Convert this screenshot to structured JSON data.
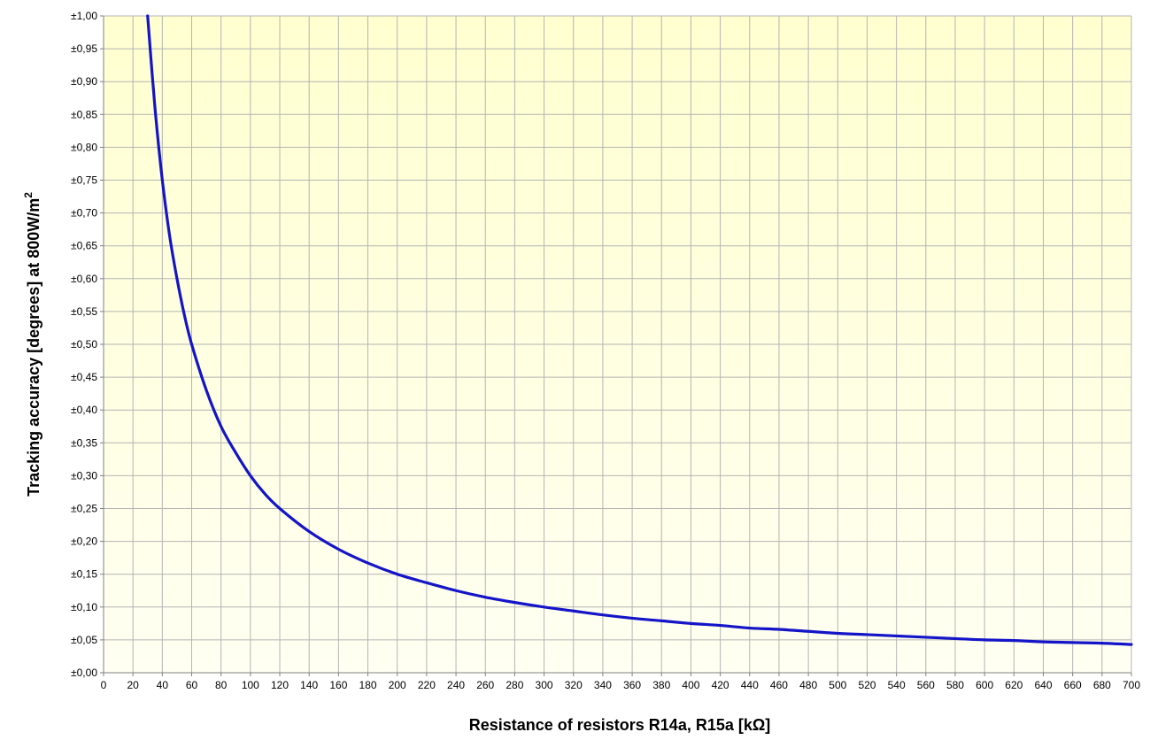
{
  "colors": {
    "plot_bg_top": "#ffffd0",
    "plot_bg_bottom": "#fffff2",
    "series": "#1414c8",
    "grid": "#b4b4b4"
  },
  "chart_data": {
    "type": "line",
    "title": "",
    "xlabel": "Resistance of resistors R14a, R15a [kΩ]",
    "ylabel_main": "Tracking accuracy [degrees] at 800W/m",
    "ylabel_sup": "2",
    "xlim": [
      0,
      700
    ],
    "ylim": [
      0,
      1
    ],
    "x_tick_step": 20,
    "y_tick_step": 0.05,
    "x_tick_labels": [
      "0",
      "20",
      "40",
      "60",
      "80",
      "100",
      "120",
      "140",
      "160",
      "180",
      "200",
      "220",
      "240",
      "260",
      "280",
      "300",
      "320",
      "340",
      "360",
      "380",
      "400",
      "420",
      "440",
      "460",
      "480",
      "500",
      "520",
      "540",
      "560",
      "580",
      "600",
      "620",
      "640",
      "660",
      "680",
      "700"
    ],
    "y_tick_labels": [
      "±0,00",
      "±0,05",
      "±0,10",
      "±0,15",
      "±0,20",
      "±0,25",
      "±0,30",
      "±0,35",
      "±0,40",
      "±0,45",
      "±0,50",
      "±0,55",
      "±0,60",
      "±0,65",
      "±0,70",
      "±0,75",
      "±0,80",
      "±0,85",
      "±0,90",
      "±0,95",
      "±1,00"
    ],
    "grid": true,
    "legend": "none",
    "series": [
      {
        "x": [
          30,
          35,
          40,
          45,
          50,
          55,
          60,
          70,
          80,
          90,
          100,
          110,
          120,
          140,
          160,
          180,
          200,
          220,
          240,
          260,
          280,
          300,
          320,
          340,
          360,
          380,
          400,
          420,
          440,
          460,
          480,
          500,
          520,
          540,
          560,
          580,
          600,
          620,
          640,
          660,
          680,
          700
        ],
        "values": [
          1.0,
          0.86,
          0.75,
          0.665,
          0.6,
          0.545,
          0.5,
          0.43,
          0.375,
          0.335,
          0.3,
          0.272,
          0.25,
          0.215,
          0.188,
          0.167,
          0.15,
          0.137,
          0.125,
          0.115,
          0.107,
          0.1,
          0.094,
          0.088,
          0.083,
          0.079,
          0.075,
          0.072,
          0.068,
          0.066,
          0.063,
          0.06,
          0.058,
          0.056,
          0.054,
          0.052,
          0.05,
          0.049,
          0.047,
          0.046,
          0.045,
          0.043
        ]
      }
    ]
  }
}
